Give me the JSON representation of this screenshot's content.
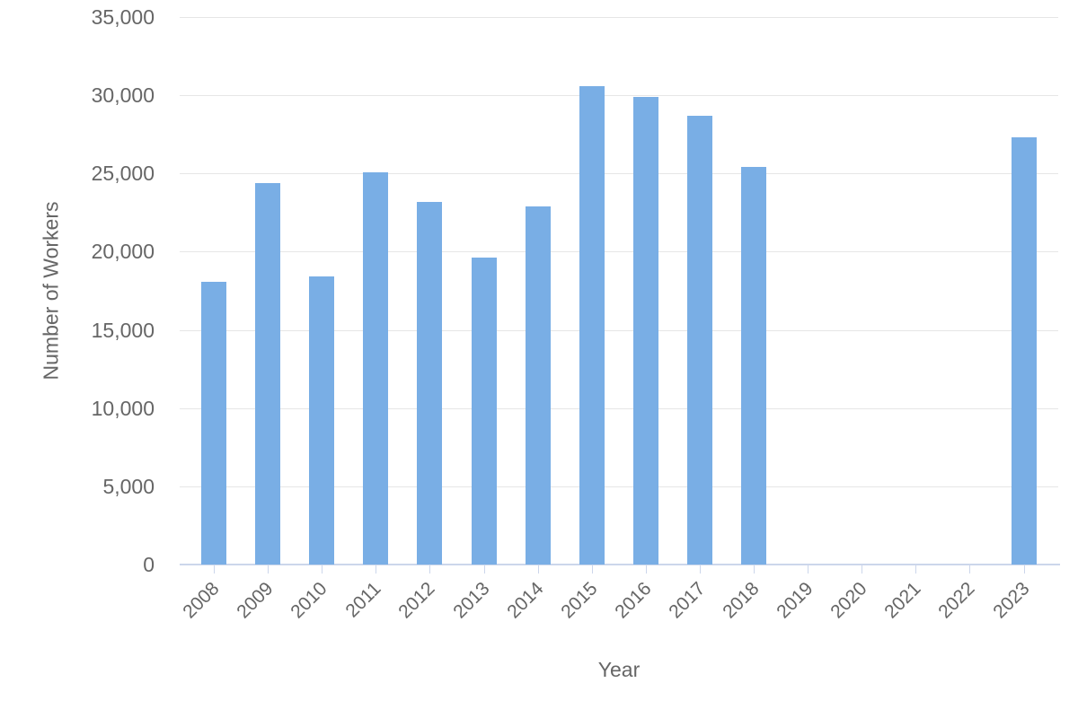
{
  "chart_data": {
    "type": "bar",
    "title": "",
    "xlabel": "Year",
    "ylabel": "Number of Workers",
    "categories": [
      "2008",
      "2009",
      "2010",
      "2011",
      "2012",
      "2013",
      "2014",
      "2015",
      "2016",
      "2017",
      "2018",
      "2019",
      "2020",
      "2021",
      "2022",
      "2023"
    ],
    "values": [
      18100,
      24400,
      18400,
      25100,
      23200,
      19600,
      22900,
      30600,
      29900,
      28700,
      25400,
      0,
      0,
      0,
      0,
      27300
    ],
    "ylim": [
      0,
      35000
    ],
    "ytick_step": 5000,
    "ytick_labels": [
      "0",
      "5,000",
      "10,000",
      "15,000",
      "20,000",
      "25,000",
      "30,000",
      "35,000"
    ],
    "grid": true,
    "legend": false,
    "colors": {
      "bar": "#79aee5",
      "gridline": "#e6e6e6",
      "axis_line": "#ccd6eb",
      "tick": "#ccd6eb",
      "label": "#666666",
      "axis_title": "#666666"
    }
  }
}
